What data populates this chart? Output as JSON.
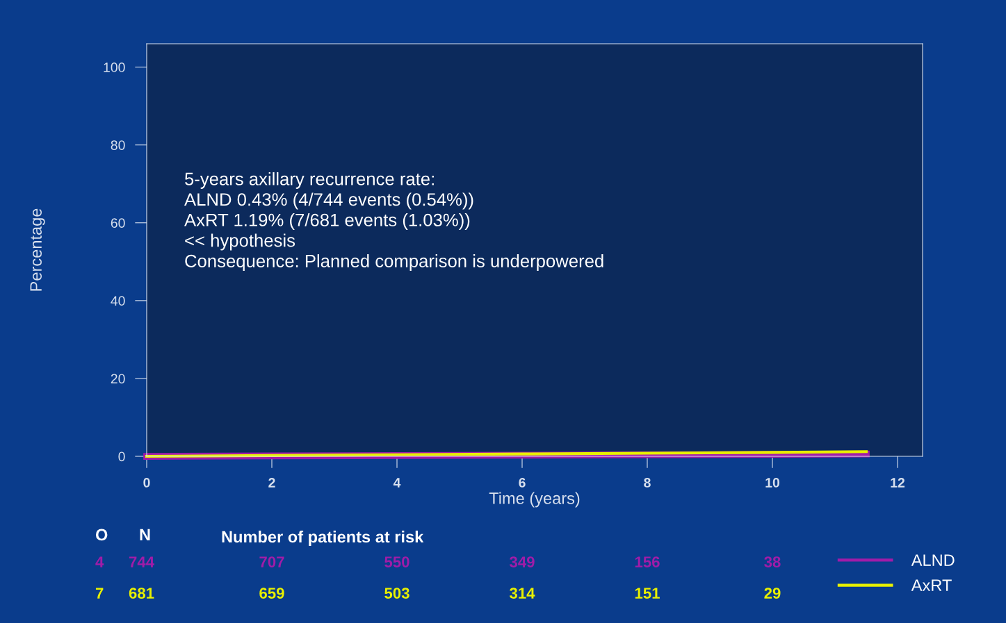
{
  "chart_data": {
    "type": "line",
    "xlabel": "Time (years)",
    "ylabel": "Percentage",
    "xlim": [
      0,
      12.4
    ],
    "ylim": [
      0,
      106
    ],
    "xticks": [
      0,
      2,
      4,
      6,
      8,
      10,
      12
    ],
    "yticks": [
      0,
      20,
      40,
      60,
      80,
      100
    ],
    "grid": false,
    "legend": "bottom right",
    "marker": "none",
    "line_style": "solid",
    "series": [
      {
        "name": "ALND",
        "color": "#a01ca8",
        "x": [
          0,
          2,
          4,
          6,
          8,
          10,
          11.5
        ],
        "values": [
          0,
          0.1,
          0.2,
          0.3,
          0.4,
          0.5,
          0.6
        ]
      },
      {
        "name": "AxRT",
        "color": "#e8f000",
        "x": [
          0,
          2,
          4,
          6,
          8,
          10,
          11.5
        ],
        "values": [
          0,
          0.2,
          0.4,
          0.6,
          0.8,
          1.0,
          1.2
        ]
      }
    ],
    "annotations": [
      "5-years axillary recurrence rate:\nALND 0.43% (4/744 events (0.54%))\nAxRT 1.19% (7/681 events (1.03%))\n<< hypothesis\nConsequence: Planned comparison is underpowered",
      "O",
      "N",
      "Number of patients at risk",
      "4",
      "744",
      "707",
      "550",
      "349",
      "156",
      "38",
      "7",
      "681",
      "659",
      "503",
      "314",
      "151",
      "29"
    ]
  }
}
